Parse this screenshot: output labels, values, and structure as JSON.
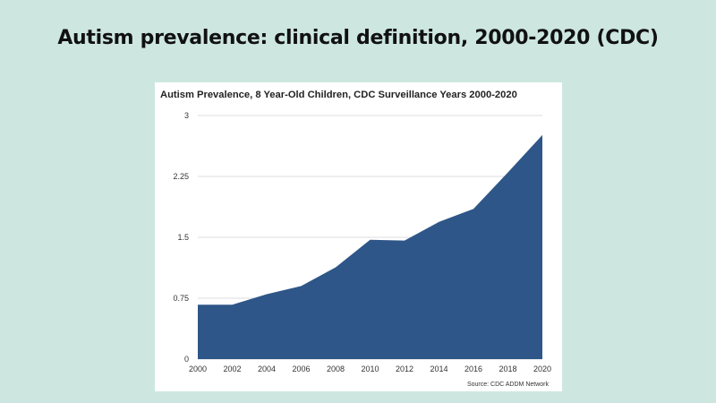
{
  "slide": {
    "title": "Autism prevalence: clinical definition, 2000-2020 (CDC)"
  },
  "colors": {
    "background": "#cde7e0",
    "area_fill": "#2e5688",
    "gridline": "#dddddd"
  },
  "chart_data": {
    "type": "area",
    "title": "Autism Prevalence, 8 Year-Old Children, CDC Surveillance Years 2000-2020",
    "xlabel": "",
    "ylabel": "",
    "x": [
      2000,
      2002,
      2004,
      2006,
      2008,
      2010,
      2012,
      2014,
      2016,
      2018,
      2020
    ],
    "series": [
      {
        "values": [
          0.67,
          0.67,
          0.8,
          0.9,
          1.13,
          1.47,
          1.46,
          1.69,
          1.85,
          2.3,
          2.76
        ]
      }
    ],
    "ylim": [
      0,
      3
    ],
    "yticks": [
      "0",
      "0.75",
      "1.5",
      "2.25",
      "3"
    ],
    "xticks": [
      "2000",
      "2002",
      "2004",
      "2006",
      "2008",
      "2010",
      "2012",
      "2014",
      "2016",
      "2018",
      "2020"
    ],
    "grid": true,
    "legend": "none",
    "source": "Source: CDC ADDM Network"
  }
}
